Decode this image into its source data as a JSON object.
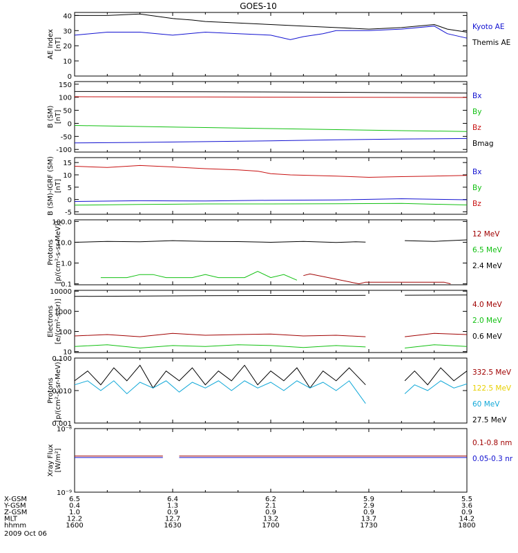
{
  "title": "GOES-10",
  "date_label": "2009 Oct 06",
  "colors": {
    "black": "#000000",
    "blue": "#1010d0",
    "red": "#c81010",
    "green": "#10c010",
    "yellow": "#e8d000",
    "cyan": "#10a8d8",
    "darkred": "#a00000"
  },
  "chart_data": [
    {
      "type": "line",
      "ylabel": [
        "AE Index",
        "[nT]"
      ],
      "ylim": [
        0,
        42
      ],
      "yscale": "linear",
      "yticks": [
        "0",
        "10",
        "20",
        "30",
        "40"
      ],
      "yticks_vals": [
        0,
        10,
        20,
        30,
        40
      ],
      "legend": [
        {
          "label": "Kyoto AE",
          "color": "blue"
        },
        {
          "label": "Themis AE",
          "color": "black"
        }
      ],
      "series": [
        {
          "color": "black",
          "x": [
            0,
            5,
            10,
            15,
            18,
            20,
            25,
            30,
            35,
            40,
            45,
            50,
            55,
            57,
            60
          ],
          "y": [
            40,
            40,
            41,
            38,
            37,
            36,
            35,
            34,
            33,
            32,
            31,
            32,
            34,
            31,
            29
          ]
        },
        {
          "color": "blue",
          "x": [
            0,
            5,
            10,
            15,
            20,
            25,
            30,
            33,
            35,
            38,
            40,
            45,
            50,
            55,
            57,
            60
          ],
          "y": [
            27,
            29,
            29,
            27,
            29,
            28,
            27,
            24,
            26,
            28,
            30,
            30,
            31,
            33,
            28,
            25
          ]
        }
      ]
    },
    {
      "type": "line",
      "ylabel": [
        "B (SM)",
        "[nT]"
      ],
      "ylim": [
        -110,
        160
      ],
      "yscale": "linear",
      "yticks": [
        "-100",
        "-50",
        "0",
        "50",
        "100",
        "150"
      ],
      "yticks_vals": [
        -100,
        -50,
        0,
        50,
        100,
        150
      ],
      "legend": [
        {
          "label": "Bx",
          "color": "blue"
        },
        {
          "label": "By",
          "color": "green"
        },
        {
          "label": "Bz",
          "color": "red"
        },
        {
          "label": "Bmag",
          "color": "black"
        }
      ],
      "series": [
        {
          "color": "black",
          "x": [
            0,
            20,
            40,
            60
          ],
          "y": [
            122,
            121,
            119,
            116
          ]
        },
        {
          "color": "red",
          "x": [
            0,
            20,
            40,
            60
          ],
          "y": [
            102,
            101,
            100,
            99
          ]
        },
        {
          "color": "green",
          "x": [
            0,
            10,
            20,
            30,
            40,
            50,
            60
          ],
          "y": [
            -8,
            -12,
            -16,
            -20,
            -24,
            -28,
            -31
          ]
        },
        {
          "color": "blue",
          "x": [
            0,
            10,
            20,
            30,
            40,
            50,
            60
          ],
          "y": [
            -75,
            -73,
            -70,
            -67,
            -63,
            -60,
            -58
          ]
        }
      ]
    },
    {
      "type": "line",
      "ylabel": [
        "B (SM)-IGRF (SM)",
        "[nT]"
      ],
      "ylim": [
        -6,
        17
      ],
      "yscale": "linear",
      "yticks": [
        "-5",
        "0",
        "5",
        "10",
        "15"
      ],
      "yticks_vals": [
        -5,
        0,
        5,
        10,
        15
      ],
      "legend": [
        {
          "label": "Bx",
          "color": "blue"
        },
        {
          "label": "By",
          "color": "green"
        },
        {
          "label": "Bz",
          "color": "red"
        }
      ],
      "series": [
        {
          "color": "red",
          "x": [
            0,
            5,
            10,
            15,
            20,
            25,
            28,
            30,
            33,
            36,
            40,
            45,
            50,
            55,
            60
          ],
          "y": [
            13.5,
            13,
            13.8,
            13.2,
            12.5,
            12,
            11.5,
            10.5,
            10,
            9.8,
            9.5,
            9,
            9.3,
            9.5,
            9.8
          ]
        },
        {
          "color": "blue",
          "x": [
            0,
            10,
            20,
            30,
            40,
            50,
            60
          ],
          "y": [
            -0.8,
            -0.5,
            -0.6,
            -0.3,
            -0.2,
            0.3,
            -0.1
          ]
        },
        {
          "color": "green",
          "x": [
            0,
            10,
            20,
            30,
            40,
            50,
            60
          ],
          "y": [
            -2.3,
            -2,
            -1.8,
            -1.8,
            -1.7,
            -1.6,
            -2.2
          ]
        }
      ]
    },
    {
      "type": "line",
      "ylabel": [
        "Protons",
        "[p/(cm²-s-sr-MeV)]"
      ],
      "ylim": [
        0.09,
        120
      ],
      "yscale": "log",
      "yticks": [
        "0.1",
        "1.0",
        "10.0",
        "100.0"
      ],
      "yticks_vals": [
        0.1,
        1,
        10,
        100
      ],
      "legend": [
        {
          "label": "12 MeV",
          "color": "darkred"
        },
        {
          "label": "6.5 MeV",
          "color": "green"
        },
        {
          "label": "2.4 MeV",
          "color": "black"
        }
      ],
      "series": [
        {
          "color": "black",
          "x": [
            0,
            5,
            10,
            15,
            20,
            25,
            30,
            35,
            40,
            43,
            44.5
          ],
          "y": [
            10,
            11,
            10.5,
            12,
            11,
            10.8,
            10,
            11,
            9.8,
            10.5,
            10.2
          ]
        },
        {
          "color": "black",
          "x": [
            50.5,
            55,
            60
          ],
          "y": [
            12,
            11,
            13
          ]
        },
        {
          "color": "green",
          "x": [
            4,
            8,
            10,
            12,
            14,
            16,
            18,
            20,
            22,
            26,
            28,
            30,
            32,
            34
          ],
          "y": [
            0.2,
            0.2,
            0.28,
            0.28,
            0.2,
            0.2,
            0.2,
            0.28,
            0.2,
            0.2,
            0.4,
            0.2,
            0.28,
            0.15
          ]
        },
        {
          "color": "darkred",
          "x": [
            35,
            36,
            43.5,
            44.5,
            56.5,
            57.5
          ],
          "y": [
            0.25,
            0.3,
            0.1,
            0.12,
            0.12,
            0.1
          ]
        }
      ]
    },
    {
      "type": "line",
      "ylabel": [
        "Electrons",
        "[e/(cm²-s-sr)]"
      ],
      "ylim": [
        9,
        11000
      ],
      "yscale": "log",
      "yticks": [
        "10",
        "100",
        "1000",
        "10000"
      ],
      "yticks_vals": [
        10,
        100,
        1000,
        10000
      ],
      "legend": [
        {
          "label": "4.0 MeV",
          "color": "darkred"
        },
        {
          "label": "2.0 MeV",
          "color": "green"
        },
        {
          "label": "0.6 MeV",
          "color": "black"
        }
      ],
      "series": [
        {
          "color": "black",
          "x": [
            0,
            20,
            44.5
          ],
          "y": [
            5500,
            6000,
            6200
          ]
        },
        {
          "color": "black",
          "x": [
            50.5,
            60
          ],
          "y": [
            6300,
            6500
          ]
        },
        {
          "color": "darkred",
          "x": [
            0,
            5,
            10,
            15,
            20,
            25,
            30,
            35,
            40,
            44.5
          ],
          "y": [
            60,
            70,
            55,
            80,
            65,
            70,
            75,
            60,
            65,
            55
          ]
        },
        {
          "color": "darkred",
          "x": [
            50.5,
            55,
            60
          ],
          "y": [
            55,
            80,
            70
          ]
        },
        {
          "color": "green",
          "x": [
            0,
            5,
            10,
            15,
            20,
            25,
            30,
            35,
            40,
            44.5
          ],
          "y": [
            18,
            22,
            15,
            20,
            18,
            22,
            20,
            16,
            20,
            17
          ]
        },
        {
          "color": "green",
          "x": [
            50.5,
            55,
            60
          ],
          "y": [
            15,
            22,
            18
          ]
        }
      ]
    },
    {
      "type": "line",
      "ylabel": [
        "Protons",
        "[p/(cm²-s-sr-MeV)]"
      ],
      "ylim": [
        0.001,
        0.1
      ],
      "yscale": "log",
      "yticks": [
        "0.001",
        "0.010",
        "0.100"
      ],
      "yticks_vals": [
        0.001,
        0.01,
        0.1
      ],
      "legend": [
        {
          "label": "332.5 MeV",
          "color": "darkred"
        },
        {
          "label": "122.5 MeV",
          "color": "yellow"
        },
        {
          "label": "60 MeV",
          "color": "cyan"
        },
        {
          "label": "27.5 MeV",
          "color": "black"
        }
      ],
      "series": [
        {
          "color": "black",
          "x": [
            0,
            2,
            4,
            6,
            8,
            10,
            12,
            14,
            16,
            18,
            20,
            22,
            24,
            26,
            28,
            30,
            32,
            34,
            36,
            38,
            40,
            42,
            44.5
          ],
          "y": [
            0.02,
            0.04,
            0.015,
            0.05,
            0.02,
            0.06,
            0.012,
            0.04,
            0.02,
            0.05,
            0.015,
            0.04,
            0.02,
            0.06,
            0.015,
            0.04,
            0.02,
            0.05,
            0.012,
            0.04,
            0.02,
            0.05,
            0.015
          ]
        },
        {
          "color": "black",
          "x": [
            50.5,
            52,
            54,
            56,
            58,
            60
          ],
          "y": [
            0.02,
            0.04,
            0.015,
            0.05,
            0.02,
            0.04
          ]
        },
        {
          "color": "cyan",
          "x": [
            0,
            2,
            4,
            6,
            8,
            10,
            12,
            14,
            16,
            18,
            20,
            22,
            24,
            26,
            28,
            30,
            32,
            34,
            36,
            38,
            40,
            42,
            44.5
          ],
          "y": [
            0.015,
            0.02,
            0.01,
            0.02,
            0.008,
            0.018,
            0.012,
            0.02,
            0.009,
            0.018,
            0.012,
            0.02,
            0.01,
            0.02,
            0.012,
            0.018,
            0.01,
            0.02,
            0.012,
            0.018,
            0.01,
            0.02,
            0.004
          ]
        },
        {
          "color": "cyan",
          "x": [
            50.5,
            52,
            54,
            56,
            58,
            60
          ],
          "y": [
            0.008,
            0.015,
            0.01,
            0.02,
            0.012,
            0.016
          ]
        }
      ]
    },
    {
      "type": "line",
      "ylabel": [
        "Xray Flux",
        "[W/m²]"
      ],
      "ylim": [
        1e-09,
        1e-08
      ],
      "yscale": "log",
      "yticks": [
        "10⁻⁹",
        "10⁻⁸"
      ],
      "yticks_vals": [
        1e-09,
        1e-08
      ],
      "legend": [
        {
          "label": "0.1-0.8 nm",
          "color": "darkred"
        },
        {
          "label": "0.05-0.3 nr",
          "color": "blue"
        }
      ],
      "series": [
        {
          "color": "darkred",
          "x": [
            0,
            13.5
          ],
          "y": [
            3.7e-09,
            3.7e-09
          ]
        },
        {
          "color": "darkred",
          "x": [
            16,
            60
          ],
          "y": [
            3.7e-09,
            3.7e-09
          ]
        },
        {
          "color": "blue",
          "x": [
            0,
            13.5
          ],
          "y": [
            3.5e-09,
            3.5e-09
          ]
        },
        {
          "color": "blue",
          "x": [
            16,
            60
          ],
          "y": [
            3.5e-09,
            3.5e-09
          ]
        }
      ]
    }
  ],
  "x_axis": {
    "xlim": [
      0,
      60
    ],
    "tick_positions": [
      0,
      15,
      30,
      45,
      60
    ],
    "rows": [
      {
        "label": "X-GSM",
        "values": [
          "6.5",
          "6.4",
          "6.2",
          "5.9",
          "5.5"
        ]
      },
      {
        "label": "Y-GSM",
        "values": [
          "0.4",
          "1.3",
          "2.1",
          "2.9",
          "3.6"
        ]
      },
      {
        "label": "Z-GSM",
        "values": [
          "1.0",
          "0.9",
          "0.9",
          "0.9",
          "0.9"
        ]
      },
      {
        "label": "MLT",
        "values": [
          "12.2",
          "12.7",
          "13.2",
          "13.7",
          "14.2"
        ]
      },
      {
        "label": "hhmm",
        "values": [
          "1600",
          "1630",
          "1700",
          "1730",
          "1800"
        ]
      }
    ]
  }
}
